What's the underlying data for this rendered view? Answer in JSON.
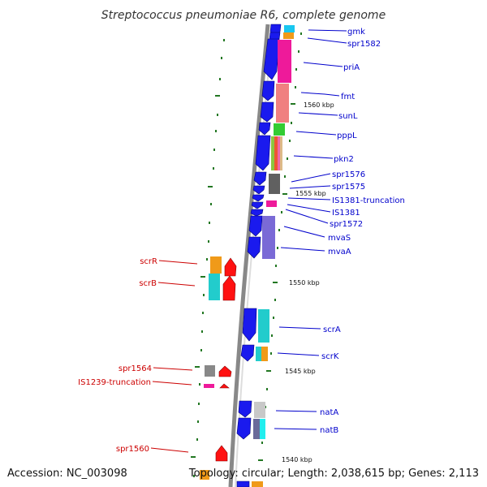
{
  "title": "Streptococcus pneumoniae R6, complete genome",
  "footer": {
    "accession": "Accession: NC_003098",
    "topology": "Topology: circular; Length: 2,038,615 bp; Genes: 2,113"
  },
  "colors": {
    "forward_label": "#0000cc",
    "reverse_label": "#cc0000",
    "backbone": "#888888",
    "tick": "#227722"
  },
  "kbp_markers": [
    "1560 kbp",
    "1555 kbp",
    "1550 kbp",
    "1545 kbp",
    "1540 kbp"
  ],
  "forward_labels": [
    "gmk",
    "spr1582",
    "priA",
    "fmt",
    "sunL",
    "pppL",
    "pkn2",
    "spr1576",
    "spr1575",
    "IS1381-truncation",
    "IS1381",
    "spr1572",
    "mvaS",
    "mvaA",
    "scrA",
    "scrK",
    "natA",
    "natB"
  ],
  "reverse_labels": [
    "scrR",
    "scrB",
    "spr1564",
    "IS1239-truncation",
    "spr1560"
  ]
}
